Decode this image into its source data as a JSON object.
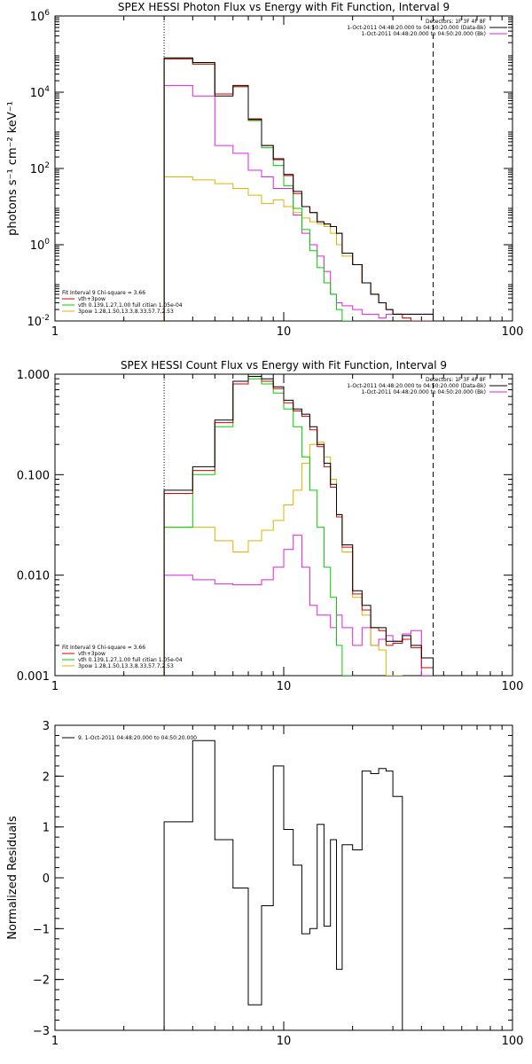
{
  "colors": {
    "data": "#000000",
    "total": "#e00000",
    "vth": "#00d000",
    "pow": "#ddb400",
    "bkg": "#e020e0"
  },
  "chart_data": [
    {
      "type": "line",
      "title": "SPEX HESSI Photon Flux vs Energy with Fit Function, Interval 9",
      "ylabel": "photons s⁻¹ cm⁻² keV⁻¹",
      "xscale": "log",
      "yscale": "log",
      "xlim": [
        1,
        100
      ],
      "ylim": [
        0.01,
        1000000
      ],
      "xticks": [
        "1",
        "10",
        "100"
      ],
      "yticks": [
        {
          "v": 0.01,
          "b": "10",
          "e": "-2"
        },
        {
          "v": 1,
          "b": "10",
          "e": "0"
        },
        {
          "v": 100,
          "b": "10",
          "e": "2"
        },
        {
          "v": 10000,
          "b": "10",
          "e": "4"
        },
        {
          "v": 1000000,
          "b": "10",
          "e": "6"
        }
      ],
      "vlines": [
        {
          "x": 3,
          "style": "dotted"
        },
        {
          "x": 45,
          "style": "dashed"
        }
      ],
      "header": [
        "Detectors: 1F 3F 4F 8F",
        "1-Oct-2011 04:48:20.000 to 04:50:20.000 (Data-Bk)",
        "1-Oct-2011 04:48:20.000 to 04:50:20.000 (Bk)"
      ],
      "header_keys": [
        null,
        "data",
        "bkg"
      ],
      "legend": [
        "Fit Interval 9    Chi-square = 3.66",
        "vth+3pow",
        "vth 0.139,1.27,1.00  full citian 1.05e-04",
        "3pow 1.28,1.50,13.3,8.33,57.7,2.53"
      ],
      "legend_keys": [
        null,
        "total",
        "vth",
        "pow"
      ],
      "edges": [
        3,
        4,
        5,
        6,
        7,
        8,
        9,
        10,
        11,
        12,
        13,
        14,
        15,
        16,
        17,
        18,
        20,
        22,
        24,
        26,
        28,
        30,
        33,
        36,
        40,
        45
      ],
      "series": [
        {
          "key": "data",
          "values": [
            80000,
            60000,
            8000,
            15000,
            2000,
            400,
            180,
            70,
            25,
            10,
            7,
            4,
            3.5,
            3,
            2,
            0.6,
            0.3,
            0.1,
            0.05,
            0.03,
            0.02,
            0.015,
            0.015,
            0.015,
            0.015
          ]
        },
        {
          "key": "total",
          "values": [
            75000,
            55000,
            9000,
            14000,
            1900,
            400,
            170,
            65,
            22,
            10,
            7,
            4,
            3.5,
            3,
            2,
            0.6,
            0.3,
            0.1,
            0.05,
            0.03,
            0.02,
            0.015,
            0.012,
            0.01,
            0.01
          ]
        },
        {
          "key": "vth",
          "values": [
            75000,
            55000,
            9000,
            14000,
            1800,
            350,
            120,
            35,
            9,
            2.5,
            0.7,
            0.25,
            0.1,
            0.05,
            0.02,
            0.01
          ]
        },
        {
          "key": "pow",
          "values": [
            60,
            50,
            40,
            30,
            20,
            12,
            15,
            10,
            7,
            5,
            4,
            3.5,
            3,
            2,
            1,
            0.5,
            0.3,
            0.1,
            0.05,
            0.03,
            0.02,
            0.015,
            0.012,
            0.01,
            0.01
          ]
        },
        {
          "key": "bkg",
          "values": [
            15000,
            8000,
            400,
            250,
            90,
            60,
            30,
            30,
            6,
            2,
            1,
            0.5,
            0.2,
            0.05,
            0.03,
            0.025,
            0.02,
            0.015,
            0.015,
            0.012,
            0.015,
            0.015,
            0.015,
            0.015,
            0.015
          ]
        }
      ]
    },
    {
      "type": "line",
      "title": "SPEX HESSI Count Flux vs Energy with Fit Function, Interval 9",
      "ylabel": "",
      "xscale": "log",
      "yscale": "log",
      "xlim": [
        1,
        100
      ],
      "ylim": [
        0.001,
        1.0
      ],
      "xticks": [
        "1",
        "10",
        "100"
      ],
      "yticks": [
        {
          "v": 0.001,
          "t": "0.001"
        },
        {
          "v": 0.01,
          "t": "0.010"
        },
        {
          "v": 0.1,
          "t": "0.100"
        },
        {
          "v": 1.0,
          "t": "1.000"
        }
      ],
      "vlines": [
        {
          "x": 3,
          "style": "dotted"
        },
        {
          "x": 45,
          "style": "dashed"
        }
      ],
      "header": [
        "Detectors: 1F 3F 4F 8F",
        "1-Oct-2011 04:48:20.000 to 04:50:20.000 (Data-Bk)",
        "1-Oct-2011 04:48:20.000 to 04:50:20.000 (Bk)"
      ],
      "header_keys": [
        null,
        "data",
        "bkg"
      ],
      "legend": [
        "Fit Interval 9    Chi-square = 3.66",
        "vth+3pow",
        "vth 0.139,1.27,1.00  full citian 1.05e-04",
        "3pow 1.28,1.50,13.3,8.33,57.7,2.53"
      ],
      "legend_keys": [
        null,
        "total",
        "vth",
        "pow"
      ],
      "edges": [
        3,
        4,
        5,
        6,
        7,
        8,
        9,
        10,
        11,
        12,
        13,
        14,
        15,
        16,
        17,
        18,
        20,
        22,
        24,
        26,
        28,
        30,
        33,
        36,
        40,
        45
      ],
      "series": [
        {
          "key": "data",
          "values": [
            0.07,
            0.12,
            0.35,
            0.85,
            0.95,
            0.9,
            0.75,
            0.55,
            0.45,
            0.4,
            0.3,
            0.2,
            0.13,
            0.08,
            0.04,
            0.02,
            0.007,
            0.005,
            0.003,
            0.003,
            0.0022,
            0.0022,
            0.0025,
            0.002,
            0.0015
          ]
        },
        {
          "key": "total",
          "values": [
            0.065,
            0.11,
            0.33,
            0.8,
            0.95,
            0.85,
            0.72,
            0.52,
            0.43,
            0.38,
            0.28,
            0.19,
            0.12,
            0.075,
            0.038,
            0.019,
            0.0065,
            0.0045,
            0.003,
            0.0028,
            0.002,
            0.0021,
            0.0023,
            0.0019,
            0.0012
          ]
        },
        {
          "key": "vth",
          "values": [
            0.03,
            0.1,
            0.3,
            0.8,
            0.9,
            0.8,
            0.65,
            0.45,
            0.3,
            0.15,
            0.07,
            0.03,
            0.012,
            0.006,
            0.002,
            0.0006
          ]
        },
        {
          "key": "pow",
          "values": [
            0.03,
            0.03,
            0.022,
            0.017,
            0.022,
            0.028,
            0.035,
            0.05,
            0.07,
            0.13,
            0.2,
            0.21,
            0.15,
            0.09,
            0.04,
            0.017,
            0.006,
            0.004,
            0.002,
            0.0018,
            0.001,
            0.0007
          ]
        },
        {
          "key": "bkg",
          "values": [
            0.01,
            0.009,
            0.0082,
            0.008,
            0.008,
            0.009,
            0.012,
            0.018,
            0.025,
            0.012,
            0.005,
            0.004,
            0.004,
            0.003,
            0.004,
            0.003,
            0.002,
            0.003,
            0.002,
            0.0023,
            0.0025,
            0.0022,
            0.0026,
            0.0028,
            0.0008
          ]
        }
      ]
    },
    {
      "type": "line",
      "title": "",
      "ylabel": "Normalized Residuals",
      "xscale": "log",
      "yscale": "linear",
      "xlim": [
        1,
        100
      ],
      "ylim": [
        -3,
        3
      ],
      "xticks": [
        "1",
        "10",
        "100"
      ],
      "yticks": [
        {
          "v": -3,
          "t": "−3"
        },
        {
          "v": -2,
          "t": "−2"
        },
        {
          "v": -1,
          "t": "−1"
        },
        {
          "v": 0,
          "t": "0"
        },
        {
          "v": 1,
          "t": "1"
        },
        {
          "v": 2,
          "t": "2"
        },
        {
          "v": 3,
          "t": "3"
        }
      ],
      "legend": [
        "9.  1-Oct-2011 04:48:20.000 to 04:50:20.000"
      ],
      "legend_keys": [
        "data"
      ],
      "edges": [
        3,
        4,
        5,
        6,
        7,
        8,
        9,
        10,
        11,
        12,
        13,
        14,
        15,
        16,
        17,
        18,
        20,
        22,
        24,
        26,
        28,
        30,
        33,
        36,
        40,
        45
      ],
      "series": [
        {
          "key": "data",
          "values": [
            1.1,
            2.7,
            0.75,
            -0.2,
            -2.5,
            -0.55,
            2.2,
            0.95,
            0.25,
            -1.1,
            -1.0,
            1.05,
            -0.95,
            0.75,
            -1.8,
            0.65,
            0.55,
            2.1,
            2.05,
            2.15,
            2.1,
            1.6
          ]
        }
      ]
    }
  ]
}
